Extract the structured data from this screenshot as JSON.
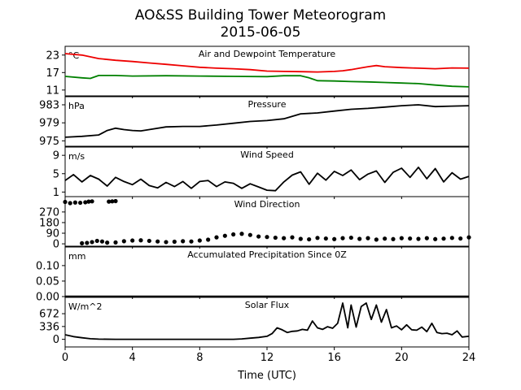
{
  "figure": {
    "title": "AO&SS Building Tower Meteorogram",
    "subtitle": "2015-06-05",
    "xlabel": "Time (UTC)"
  },
  "chart_data": [
    {
      "type": "line",
      "title": "Air and Dewpoint Temperature",
      "ylabel": "°C",
      "xlim": [
        0,
        24
      ],
      "ylim": [
        9,
        26
      ],
      "xticks": [
        0,
        4,
        8,
        12,
        16,
        20,
        24
      ],
      "yticks": [
        11,
        17,
        23
      ],
      "series": [
        {
          "color": "#ee0000",
          "x": [
            0,
            1,
            2,
            3,
            4,
            5,
            6,
            7,
            8,
            9,
            10,
            11,
            12,
            13,
            14,
            15,
            16,
            16.5,
            17,
            17.5,
            18,
            18.5,
            19,
            20,
            21,
            22,
            23,
            24
          ],
          "y": [
            23.5,
            23,
            21.8,
            21.2,
            20.8,
            20.3,
            19.8,
            19.3,
            18.8,
            18.5,
            18.3,
            18,
            17.5,
            17.4,
            17.3,
            17.2,
            17.4,
            17.6,
            18,
            18.5,
            19,
            19.4,
            19,
            18.7,
            18.5,
            18.3,
            18.6,
            18.5
          ]
        },
        {
          "color": "#008000",
          "x": [
            0,
            1,
            1.5,
            2,
            3,
            4,
            6,
            8,
            10,
            12,
            13,
            14,
            14.5,
            15,
            16,
            17,
            18,
            19,
            20,
            21,
            22,
            23,
            24
          ],
          "y": [
            15.7,
            15.2,
            15,
            16,
            16,
            15.8,
            15.9,
            15.8,
            15.7,
            15.6,
            15.9,
            15.9,
            15.2,
            14.2,
            14.1,
            13.9,
            13.8,
            13.6,
            13.4,
            13.2,
            12.7,
            12.3,
            12.1
          ]
        }
      ]
    },
    {
      "type": "line",
      "title": "Pressure",
      "ylabel": "hPa",
      "xlim": [
        0,
        24
      ],
      "ylim": [
        973.8,
        984.8
      ],
      "xticks": [
        0,
        4,
        8,
        12,
        16,
        20,
        24
      ],
      "yticks": [
        975,
        979,
        983
      ],
      "series": [
        {
          "color": "#000000",
          "x": [
            0,
            1,
            2,
            2.5,
            3,
            3.5,
            4,
            4.5,
            5,
            6,
            7,
            8,
            9,
            10,
            11,
            12,
            13,
            14,
            15,
            16,
            17,
            18,
            19,
            20,
            21,
            22,
            23,
            24
          ],
          "y": [
            975.8,
            976,
            976.3,
            977.3,
            977.8,
            977.5,
            977.3,
            977.2,
            977.5,
            978.1,
            978.2,
            978.2,
            978.5,
            978.9,
            979.3,
            979.5,
            979.9,
            981,
            981.2,
            981.6,
            982,
            982.2,
            982.5,
            982.8,
            983,
            982.6,
            982.7,
            982.8
          ]
        }
      ]
    },
    {
      "type": "line",
      "title": "Wind Speed",
      "ylabel": "m/s",
      "xlim": [
        0,
        24
      ],
      "ylim": [
        0,
        10.8
      ],
      "xticks": [
        0,
        4,
        8,
        12,
        16,
        20,
        24
      ],
      "yticks": [
        1,
        5,
        9
      ],
      "series": [
        {
          "color": "#000000",
          "x": [
            0,
            0.5,
            1,
            1.5,
            2,
            2.5,
            3,
            3.5,
            4,
            4.5,
            5,
            5.5,
            6,
            6.5,
            7,
            7.5,
            8,
            8.5,
            9,
            9.5,
            10,
            10.5,
            11,
            11.5,
            12,
            12.5,
            13,
            13.5,
            14,
            14.5,
            15,
            15.5,
            16,
            16.5,
            17,
            17.5,
            18,
            18.5,
            19,
            19.5,
            20,
            20.5,
            21,
            21.5,
            22,
            22.5,
            23,
            23.5,
            24
          ],
          "y": [
            3.5,
            4.8,
            3.2,
            4.6,
            3.8,
            2.3,
            4.2,
            3.3,
            2.6,
            3.8,
            2.4,
            1.9,
            3.1,
            2.2,
            3.3,
            1.8,
            3.3,
            3.5,
            2.2,
            3.2,
            2.9,
            1.8,
            2.8,
            2.1,
            1.4,
            1.3,
            3.2,
            4.7,
            5.4,
            2.7,
            5.1,
            3.6,
            5.5,
            4.6,
            5.8,
            3.7,
            4.9,
            5.6,
            3.1,
            5.3,
            6.2,
            4.2,
            6.4,
            3.9,
            6.1,
            3.2,
            5.2,
            3.8,
            4.4
          ]
        }
      ]
    },
    {
      "type": "scatter",
      "title": "Wind Direction",
      "ylabel": "°",
      "xlim": [
        0,
        24
      ],
      "ylim": [
        -20,
        400
      ],
      "xticks": [
        0,
        4,
        8,
        12,
        16,
        20,
        24
      ],
      "yticks": [
        0,
        90,
        180,
        270
      ],
      "series": [
        {
          "color": "#000000",
          "x": [
            0,
            0.3,
            0.6,
            0.9,
            1.2,
            1.4,
            1.6,
            2.6,
            2.8,
            3.0,
            1.0,
            1.3,
            1.6,
            1.9,
            2.2,
            2.5,
            3.0,
            3.5,
            4.0,
            4.5,
            5.0,
            5.5,
            6.0,
            6.5,
            7.0,
            7.5,
            8.0,
            8.5,
            9.0,
            9.5,
            10.0,
            10.5,
            11.0,
            11.5,
            12.0,
            12.5,
            13.0,
            13.5,
            14.0,
            14.5,
            15.0,
            15.5,
            16.0,
            16.5,
            17.0,
            17.5,
            18.0,
            18.5,
            19.0,
            19.5,
            20.0,
            20.5,
            21.0,
            21.5,
            22.0,
            22.5,
            23.0,
            23.5,
            24.0
          ],
          "y": [
            355,
            345,
            350,
            348,
            352,
            358,
            360,
            358,
            360,
            362,
            5,
            8,
            15,
            25,
            20,
            10,
            12,
            22,
            28,
            30,
            25,
            20,
            15,
            18,
            22,
            20,
            28,
            35,
            55,
            68,
            80,
            85,
            75,
            62,
            58,
            52,
            48,
            55,
            42,
            38,
            50,
            45,
            40,
            48,
            52,
            42,
            48,
            36,
            44,
            40,
            48,
            45,
            42,
            48,
            40,
            44,
            50,
            45,
            55
          ]
        }
      ]
    },
    {
      "type": "line",
      "title": "Accumulated Precipitation Since 0Z",
      "ylabel": "mm",
      "xlim": [
        0,
        24
      ],
      "ylim": [
        0,
        0.16
      ],
      "xticks": [
        0,
        4,
        8,
        12,
        16,
        20,
        24
      ],
      "yticks": [
        0.0,
        0.05,
        0.1
      ],
      "ytick_labels": [
        "0.00",
        "0.05",
        "0.10"
      ],
      "series": [
        {
          "color": "#000000",
          "x": [
            0,
            24
          ],
          "y": [
            0,
            0
          ]
        }
      ]
    },
    {
      "type": "line",
      "title": "Solar Flux",
      "ylabel": "W/m^2",
      "xlim": [
        0,
        24
      ],
      "ylim": [
        -200,
        1100
      ],
      "xticks": [
        0,
        4,
        8,
        12,
        16,
        20,
        24
      ],
      "yticks": [
        0,
        336,
        672
      ],
      "series": [
        {
          "color": "#000000",
          "x": [
            0,
            0.5,
            1,
            1.5,
            2,
            3,
            5,
            7,
            9,
            10,
            10.5,
            11,
            11.5,
            12,
            12.3,
            12.6,
            12.9,
            13.2,
            13.5,
            13.8,
            14.1,
            14.4,
            14.7,
            15.0,
            15.3,
            15.6,
            15.9,
            16.2,
            16.5,
            16.8,
            17.0,
            17.3,
            17.6,
            17.9,
            18.2,
            18.5,
            18.8,
            19.1,
            19.4,
            19.7,
            20.0,
            20.3,
            20.6,
            20.9,
            21.2,
            21.5,
            21.8,
            22.1,
            22.4,
            22.7,
            23.0,
            23.3,
            23.6,
            24.0
          ],
          "y": [
            120,
            70,
            40,
            15,
            5,
            0,
            0,
            0,
            0,
            0,
            10,
            30,
            50,
            80,
            150,
            300,
            250,
            180,
            210,
            220,
            260,
            240,
            480,
            300,
            260,
            330,
            290,
            420,
            950,
            300,
            900,
            320,
            860,
            950,
            520,
            900,
            450,
            780,
            300,
            350,
            250,
            380,
            250,
            240,
            320,
            200,
            420,
            180,
            150,
            160,
            120,
            220,
            60,
            80
          ]
        }
      ]
    }
  ]
}
